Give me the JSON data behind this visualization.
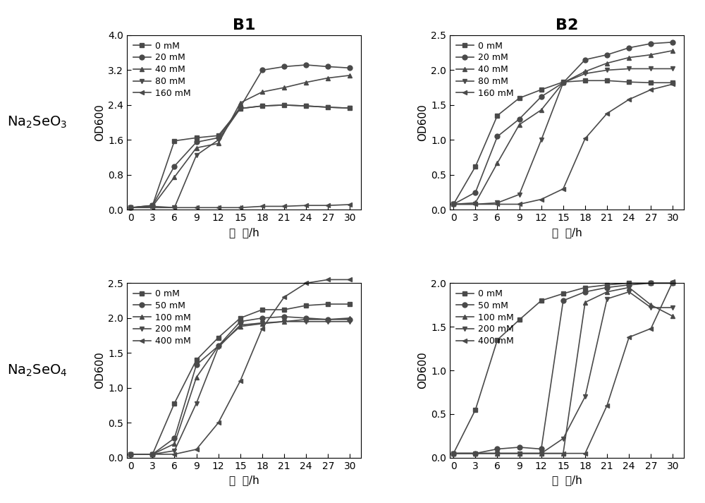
{
  "time": [
    0,
    3,
    6,
    9,
    12,
    15,
    18,
    21,
    24,
    27,
    30
  ],
  "B1_top": {
    "title": "B1",
    "ylabel": "OD600",
    "xlabel": "时 间/h",
    "ylim": [
      0,
      4.0
    ],
    "yticks": [
      0.0,
      0.8,
      1.6,
      2.4,
      3.2,
      4.0
    ],
    "ytick_labels": [
      "0.0",
      "0.8",
      "1.6",
      "2.4",
      "3.2",
      "4.0"
    ],
    "legend_labels": [
      "0 mM",
      "20 mM",
      "40 mM",
      "80 mM",
      "160 mM"
    ],
    "series": [
      [
        0.05,
        0.1,
        1.58,
        1.65,
        1.7,
        2.32,
        2.38,
        2.4,
        2.38,
        2.35,
        2.33
      ],
      [
        0.05,
        0.1,
        1.0,
        1.55,
        1.65,
        2.35,
        3.2,
        3.28,
        3.32,
        3.28,
        3.25
      ],
      [
        0.05,
        0.08,
        0.75,
        1.42,
        1.52,
        2.45,
        2.7,
        2.8,
        2.92,
        3.02,
        3.08
      ],
      [
        0.05,
        0.08,
        0.05,
        1.25,
        1.6,
        2.32,
        2.38,
        2.4,
        2.38,
        2.35,
        2.33
      ],
      [
        0.05,
        0.05,
        0.05,
        0.05,
        0.05,
        0.05,
        0.08,
        0.08,
        0.1,
        0.1,
        0.12
      ]
    ]
  },
  "B2_top": {
    "title": "B2",
    "ylabel": "OD600",
    "xlabel": "时 间/h",
    "ylim": [
      0,
      2.5
    ],
    "yticks": [
      0.0,
      0.5,
      1.0,
      1.5,
      2.0,
      2.5
    ],
    "ytick_labels": [
      "0.0",
      "0.5",
      "1.0",
      "1.5",
      "2.0",
      "2.5"
    ],
    "legend_labels": [
      "0 mM",
      "20 mM",
      "40 mM",
      "80 mM",
      "160 mM"
    ],
    "series": [
      [
        0.08,
        0.62,
        1.35,
        1.6,
        1.72,
        1.83,
        1.85,
        1.85,
        1.83,
        1.82,
        1.82
      ],
      [
        0.08,
        0.25,
        1.05,
        1.3,
        1.62,
        1.82,
        2.15,
        2.22,
        2.32,
        2.38,
        2.4
      ],
      [
        0.08,
        0.1,
        0.67,
        1.22,
        1.43,
        1.82,
        1.98,
        2.1,
        2.18,
        2.22,
        2.28
      ],
      [
        0.08,
        0.08,
        0.1,
        0.22,
        1.0,
        1.82,
        1.95,
        2.0,
        2.02,
        2.02,
        2.02
      ],
      [
        0.08,
        0.08,
        0.08,
        0.08,
        0.15,
        0.3,
        1.02,
        1.38,
        1.58,
        1.72,
        1.8
      ]
    ]
  },
  "B1_bot": {
    "ylabel": "OD600",
    "xlabel": "时 间/h",
    "ylim": [
      0,
      2.5
    ],
    "yticks": [
      0.0,
      0.5,
      1.0,
      1.5,
      2.0,
      2.5
    ],
    "ytick_labels": [
      "0.0",
      "0.5",
      "1.0",
      "1.5",
      "2.0",
      "2.5"
    ],
    "legend_labels": [
      "0 mM",
      "50 mM",
      "100 mM",
      "200 mM",
      "400 mM"
    ],
    "series": [
      [
        0.05,
        0.05,
        0.78,
        1.4,
        1.72,
        2.0,
        2.12,
        2.12,
        2.18,
        2.2,
        2.2
      ],
      [
        0.05,
        0.05,
        0.28,
        1.33,
        1.6,
        1.95,
        2.0,
        2.02,
        2.0,
        1.98,
        1.98
      ],
      [
        0.05,
        0.05,
        0.2,
        1.15,
        1.6,
        1.88,
        1.92,
        1.95,
        1.98,
        1.98,
        2.0
      ],
      [
        0.05,
        0.05,
        0.1,
        0.78,
        1.58,
        1.9,
        1.93,
        1.95,
        1.95,
        1.95,
        1.95
      ],
      [
        0.05,
        0.05,
        0.05,
        0.12,
        0.5,
        1.1,
        1.85,
        2.3,
        2.5,
        2.55,
        2.55
      ]
    ]
  },
  "B2_bot": {
    "ylabel": "OD600",
    "xlabel": "时 间/h",
    "ylim": [
      0,
      2.0
    ],
    "yticks": [
      0.0,
      0.5,
      1.0,
      1.5,
      2.0
    ],
    "ytick_labels": [
      "0.0",
      "0.5",
      "1.0",
      "1.5",
      "2.0"
    ],
    "legend_labels": [
      "0 mM",
      "50 mM",
      "100 mM",
      "200 mM",
      "400 mM"
    ],
    "series": [
      [
        0.05,
        0.55,
        1.35,
        1.58,
        1.8,
        1.88,
        1.95,
        1.98,
        2.0,
        2.0,
        2.0
      ],
      [
        0.05,
        0.05,
        0.1,
        0.12,
        0.1,
        1.8,
        1.9,
        1.95,
        1.98,
        2.0,
        2.0
      ],
      [
        0.05,
        0.05,
        0.05,
        0.05,
        0.05,
        0.05,
        1.78,
        1.9,
        1.95,
        1.75,
        1.62
      ],
      [
        0.05,
        0.05,
        0.05,
        0.05,
        0.05,
        0.22,
        0.7,
        1.82,
        1.9,
        1.72,
        1.72
      ],
      [
        0.05,
        0.05,
        0.05,
        0.05,
        0.05,
        0.05,
        0.05,
        0.6,
        1.38,
        1.48,
        2.02
      ]
    ]
  },
  "row_labels_top": "Na₂SeO₃",
  "row_labels_bot": "Na₂SeO₄",
  "marker_styles": [
    "s",
    "o",
    "^",
    "v",
    "<"
  ],
  "line_color": "#4a4a4a",
  "marker_color": "#4a4a4a",
  "background_color": "#ffffff",
  "title_fontsize": 16,
  "label_fontsize": 11,
  "tick_fontsize": 10,
  "legend_fontsize": 9,
  "row_label_fontsize": 14
}
